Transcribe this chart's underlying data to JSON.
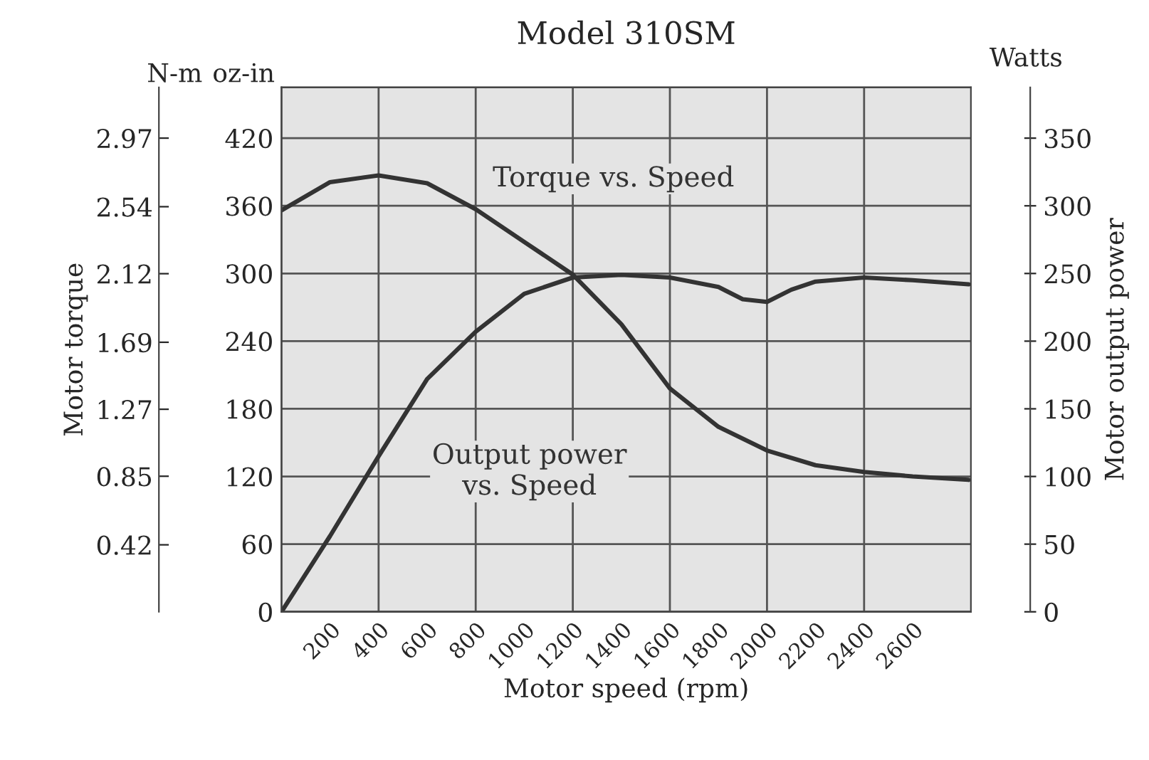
{
  "chart_data": {
    "type": "line",
    "title": "Model 310SM",
    "xlabel": "Motor speed (rpm)",
    "ylabel": "Motor torque",
    "y2label": "Motor output power",
    "annotations": [
      "N-m",
      "oz-in",
      "Watts"
    ],
    "series": [
      {
        "name": "Torque vs. Speed",
        "color": "#333333",
        "x": [
          0,
          200,
          400,
          600,
          800,
          1000,
          1200,
          1400,
          1600,
          1800,
          2000,
          2200,
          2400,
          2600,
          2830
        ],
        "values": [
          356,
          381,
          387,
          380,
          357,
          328,
          299,
          255,
          198,
          164,
          143,
          130,
          124,
          120,
          117
        ]
      },
      {
        "name": "Output power\nvs. Speed",
        "color": "#333333",
        "axis": "y2",
        "x": [
          0,
          200,
          400,
          600,
          800,
          1000,
          1200,
          1400,
          1600,
          1800,
          1900,
          2000,
          2100,
          2200,
          2400,
          2600,
          2830
        ],
        "values": [
          0,
          56,
          115,
          172,
          207,
          235,
          247,
          249,
          247,
          240,
          231,
          229,
          238,
          244,
          247,
          245,
          242
        ]
      }
    ],
    "xlim": [
      0,
      2840
    ],
    "xticks": [
      200,
      400,
      600,
      800,
      1000,
      1200,
      1400,
      1600,
      1800,
      2000,
      2200,
      2400,
      2600
    ],
    "ylim": [
      0,
      465
    ],
    "yticks": [
      0,
      60,
      120,
      180,
      240,
      300,
      360,
      420
    ],
    "y3lim": [
      0,
      3.288
    ],
    "y3ticks": [
      0.42,
      0.85,
      1.27,
      1.69,
      2.12,
      2.54,
      2.97
    ],
    "y2lim": [
      0,
      387.5
    ],
    "y2ticks": [
      0,
      50,
      100,
      150,
      200,
      250,
      300,
      350
    ],
    "grid": true,
    "legend": false,
    "marker": "none",
    "line_style": "solid"
  }
}
